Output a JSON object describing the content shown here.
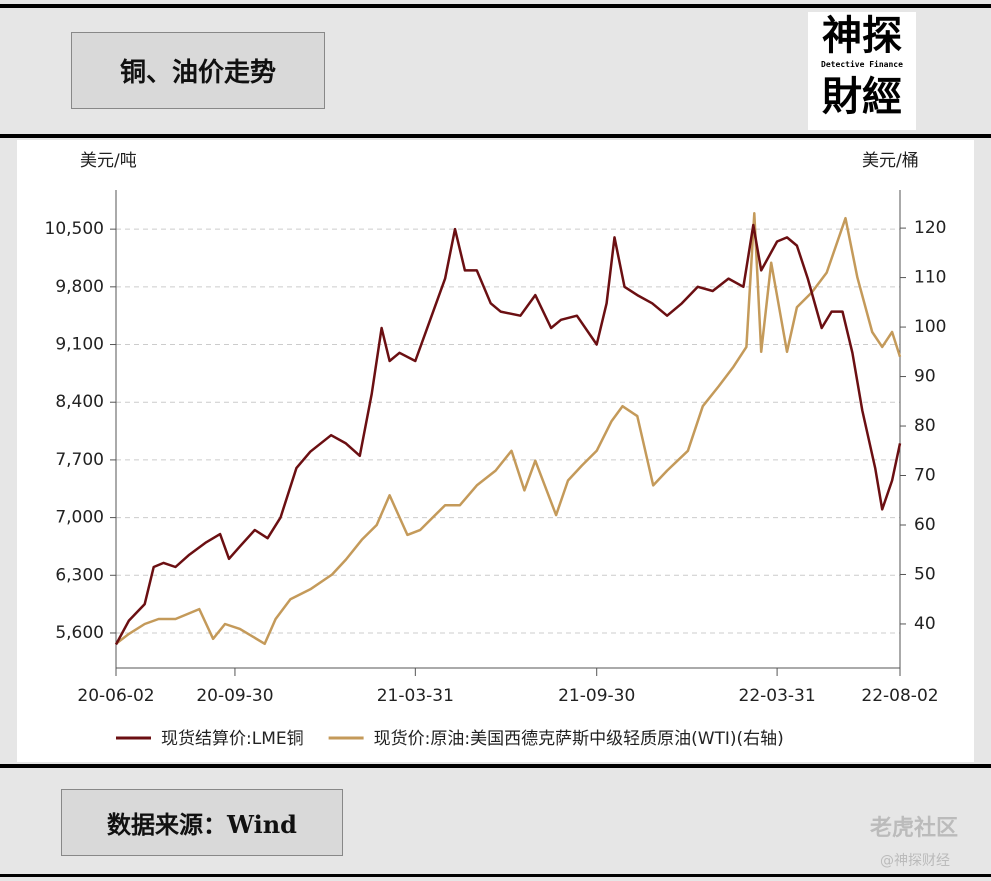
{
  "header": {
    "title": "铜、油价走势"
  },
  "logo": {
    "line1": "神探",
    "tagline": "Detective Finance",
    "line2": "財經"
  },
  "chart_data": {
    "type": "line",
    "y_label": "美元/吨",
    "y2_label": "美元/桶",
    "xlim": [
      "20-06-02",
      "22-08-02"
    ],
    "xticks": [
      "20-06-02",
      "20-09-30",
      "21-03-31",
      "21-09-30",
      "22-03-31",
      "22-08-02"
    ],
    "ylim": [
      5175,
      10975
    ],
    "yticks": [
      {
        "value": 5600,
        "label": "5,600"
      },
      {
        "value": 6300,
        "label": "6,300"
      },
      {
        "value": 7000,
        "label": "7,000"
      },
      {
        "value": 7700,
        "label": "7,700"
      },
      {
        "value": 8400,
        "label": "8,400"
      },
      {
        "value": 9100,
        "label": "9,100"
      },
      {
        "value": 9800,
        "label": "9,800"
      },
      {
        "value": 10500,
        "label": "10,500"
      }
    ],
    "y2lim": [
      31.1,
      127.7
    ],
    "y2ticks": [
      40,
      50,
      60,
      70,
      80,
      90,
      100,
      110,
      120
    ],
    "grid": true,
    "series": [
      {
        "name": "现货结算价:LME铜",
        "color": "#6b0f12",
        "x": [
          "20-06-02",
          "20-06-15",
          "20-07-01",
          "20-07-10",
          "20-07-20",
          "20-08-01",
          "20-08-15",
          "20-09-01",
          "20-09-15",
          "20-09-24",
          "20-10-05",
          "20-10-20",
          "20-11-02",
          "20-11-15",
          "20-12-01",
          "20-12-15",
          "21-01-05",
          "21-01-20",
          "21-02-03",
          "21-02-15",
          "21-02-25",
          "21-03-05",
          "21-03-15",
          "21-03-31",
          "21-04-15",
          "21-04-30",
          "21-05-10",
          "21-05-20",
          "21-06-01",
          "21-06-15",
          "21-06-25",
          "21-07-15",
          "21-07-30",
          "21-08-15",
          "21-08-25",
          "21-09-10",
          "21-09-30",
          "21-10-10",
          "21-10-18",
          "21-10-28",
          "21-11-10",
          "21-11-25",
          "21-12-10",
          "21-12-25",
          "22-01-10",
          "22-01-25",
          "22-02-10",
          "22-02-25",
          "22-03-07",
          "22-03-15",
          "22-03-31",
          "22-04-10",
          "22-04-20",
          "22-05-01",
          "22-05-15",
          "22-05-25",
          "22-06-05",
          "22-06-15",
          "22-06-25",
          "22-07-08",
          "22-07-15",
          "22-07-25",
          "22-08-02"
        ],
        "values": [
          5460,
          5750,
          5950,
          6400,
          6450,
          6400,
          6550,
          6700,
          6800,
          6500,
          6650,
          6850,
          6750,
          7000,
          7600,
          7800,
          8000,
          7900,
          7750,
          8500,
          9300,
          8900,
          9000,
          8900,
          9400,
          9900,
          10500,
          10000,
          10000,
          9600,
          9500,
          9450,
          9700,
          9300,
          9400,
          9450,
          9100,
          9600,
          10400,
          9800,
          9700,
          9600,
          9450,
          9600,
          9800,
          9750,
          9900,
          9800,
          10550,
          10000,
          10350,
          10400,
          10300,
          9900,
          9300,
          9500,
          9500,
          9000,
          8300,
          7600,
          7100,
          7450,
          7900
        ]
      },
      {
        "name": "现货价:原油:美国西德克萨斯中级轻质原油(WTI)(右轴)",
        "color": "#c49a5a",
        "axis": "y2",
        "x": [
          "20-06-02",
          "20-06-15",
          "20-07-01",
          "20-07-15",
          "20-08-01",
          "20-08-25",
          "20-09-08",
          "20-09-20",
          "20-10-05",
          "20-10-30",
          "20-11-10",
          "20-11-25",
          "20-12-15",
          "21-01-06",
          "21-01-20",
          "21-02-05",
          "21-02-20",
          "21-03-05",
          "21-03-23",
          "21-04-05",
          "21-04-30",
          "21-05-15",
          "21-06-01",
          "21-06-20",
          "21-07-06",
          "21-07-19",
          "21-07-30",
          "21-08-20",
          "21-09-01",
          "21-09-15",
          "21-09-30",
          "21-10-15",
          "21-10-26",
          "21-11-10",
          "21-11-26",
          "21-12-10",
          "21-12-31",
          "22-01-15",
          "22-01-31",
          "22-02-15",
          "22-02-28",
          "22-03-08",
          "22-03-15",
          "22-03-25",
          "22-04-10",
          "22-04-20",
          "22-05-05",
          "22-05-20",
          "22-06-08",
          "22-06-20",
          "22-07-05",
          "22-07-15",
          "22-07-25",
          "22-08-02"
        ],
        "values": [
          36,
          38,
          40,
          41,
          41,
          43,
          37,
          40,
          39,
          36,
          41,
          45,
          47,
          50,
          53,
          57,
          60,
          66,
          58,
          59,
          64,
          64,
          68,
          71,
          75,
          67,
          73,
          62,
          69,
          72,
          75,
          81,
          84,
          82,
          68,
          71,
          75,
          84,
          88,
          92,
          96,
          123,
          95,
          113,
          95,
          104,
          107,
          111,
          122,
          110,
          99,
          96,
          99,
          94
        ]
      }
    ]
  },
  "footer": {
    "source": "数据来源：Wind",
    "watermark": "老虎社区",
    "credit": "@神探财经"
  }
}
